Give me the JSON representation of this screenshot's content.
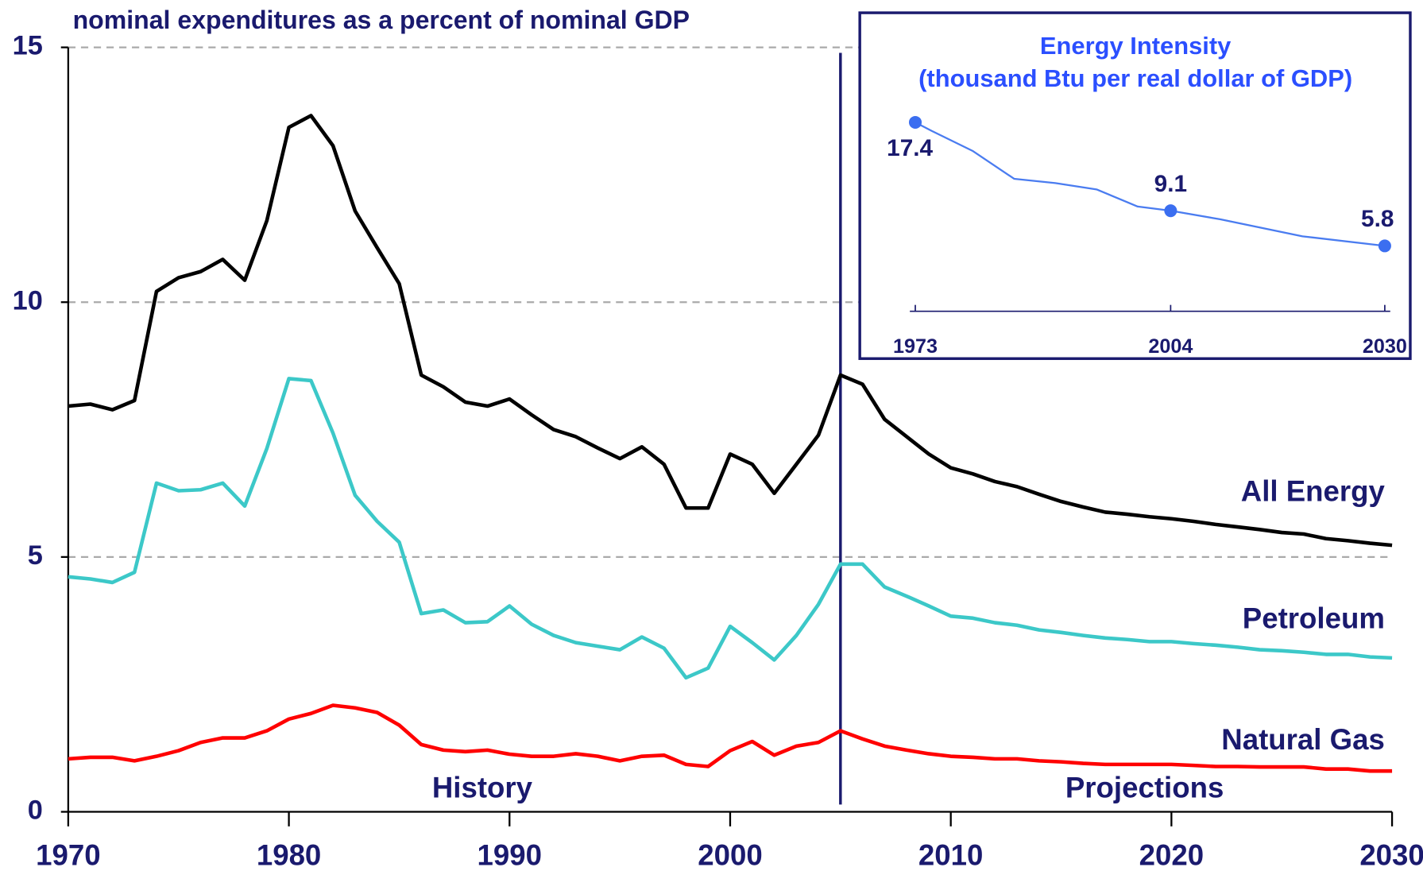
{
  "chart_data": [
    {
      "type": "line",
      "title": "nominal expenditures as a percent of nominal GDP",
      "x": [
        1970,
        1971,
        1972,
        1973,
        1974,
        1975,
        1976,
        1977,
        1978,
        1979,
        1980,
        1981,
        1982,
        1983,
        1984,
        1985,
        1986,
        1987,
        1988,
        1989,
        1990,
        1991,
        1992,
        1993,
        1994,
        1995,
        1996,
        1997,
        1998,
        1999,
        2000,
        2001,
        2002,
        2003,
        2004,
        2005,
        2006,
        2007,
        2008,
        2009,
        2010,
        2011,
        2012,
        2013,
        2014,
        2015,
        2016,
        2017,
        2018,
        2019,
        2020,
        2021,
        2022,
        2023,
        2024,
        2025,
        2026,
        2027,
        2028,
        2029,
        2030
      ],
      "series": [
        {
          "name": "All Energy",
          "color": "#000000",
          "values": [
            7.96,
            8.0,
            7.89,
            8.07,
            10.21,
            10.48,
            10.6,
            10.84,
            10.43,
            11.6,
            13.43,
            13.66,
            13.07,
            11.79,
            11.07,
            10.36,
            8.57,
            8.34,
            8.04,
            7.96,
            8.1,
            7.79,
            7.5,
            7.36,
            7.14,
            6.93,
            7.16,
            6.82,
            5.96,
            5.96,
            7.02,
            6.82,
            6.25,
            6.82,
            7.39,
            8.57,
            8.39,
            7.7,
            7.36,
            7.02,
            6.75,
            6.63,
            6.48,
            6.38,
            6.23,
            6.09,
            5.98,
            5.88,
            5.84,
            5.79,
            5.75,
            5.7,
            5.64,
            5.59,
            5.54,
            5.48,
            5.45,
            5.36,
            5.32,
            5.27,
            5.23
          ]
        },
        {
          "name": "Petroleum",
          "color": "#3cc8c8",
          "values": [
            4.61,
            4.57,
            4.5,
            4.7,
            6.45,
            6.3,
            6.32,
            6.45,
            6.0,
            7.13,
            8.5,
            8.46,
            7.43,
            6.21,
            5.7,
            5.29,
            3.89,
            3.96,
            3.71,
            3.73,
            4.04,
            3.68,
            3.46,
            3.32,
            3.25,
            3.18,
            3.43,
            3.21,
            2.63,
            2.82,
            3.64,
            3.32,
            2.98,
            3.46,
            4.07,
            4.86,
            4.86,
            4.41,
            4.23,
            4.04,
            3.84,
            3.8,
            3.71,
            3.66,
            3.57,
            3.52,
            3.46,
            3.41,
            3.38,
            3.34,
            3.34,
            3.3,
            3.27,
            3.23,
            3.18,
            3.16,
            3.13,
            3.09,
            3.09,
            3.04,
            3.02
          ]
        },
        {
          "name": "Natural Gas",
          "color": "#ff0000",
          "values": [
            1.04,
            1.07,
            1.07,
            1.0,
            1.09,
            1.2,
            1.36,
            1.45,
            1.45,
            1.59,
            1.82,
            1.93,
            2.09,
            2.04,
            1.95,
            1.7,
            1.32,
            1.21,
            1.18,
            1.21,
            1.13,
            1.09,
            1.09,
            1.14,
            1.09,
            1.0,
            1.09,
            1.11,
            0.93,
            0.89,
            1.2,
            1.38,
            1.11,
            1.29,
            1.36,
            1.59,
            1.43,
            1.29,
            1.21,
            1.14,
            1.09,
            1.07,
            1.04,
            1.04,
            1.0,
            0.98,
            0.95,
            0.93,
            0.93,
            0.93,
            0.93,
            0.91,
            0.89,
            0.89,
            0.88,
            0.88,
            0.88,
            0.84,
            0.84,
            0.8,
            0.8
          ]
        }
      ],
      "xlim": [
        1970,
        2030
      ],
      "xticks": [
        1970,
        1980,
        1990,
        2000,
        2010,
        2020,
        2030
      ],
      "ylim": [
        0,
        15
      ],
      "yticks": [
        0,
        5,
        10,
        15
      ],
      "grid": true,
      "divider_x": 2005,
      "annotations": [
        "History",
        "Projections"
      ]
    },
    {
      "type": "line",
      "title": "Energy Intensity",
      "subtitle": "(thousand Btu per real dollar of GDP)",
      "x": [
        1973,
        1975,
        1980,
        1985,
        1990,
        1995,
        2000,
        2004,
        2010,
        2020,
        2030
      ],
      "series": [
        {
          "color": "#4a7cf0",
          "values": [
            17.4,
            16.6,
            14.7,
            12.1,
            11.7,
            11.1,
            9.5,
            9.1,
            8.3,
            6.7,
            5.8
          ]
        }
      ],
      "points": {
        "x": [
          1973,
          2004,
          2030
        ],
        "values": [
          17.4,
          9.1,
          5.8
        ]
      },
      "xlim": [
        1973,
        2030
      ],
      "xticks": [
        1973,
        2004,
        2030
      ],
      "ylim": [
        0,
        20
      ]
    }
  ]
}
